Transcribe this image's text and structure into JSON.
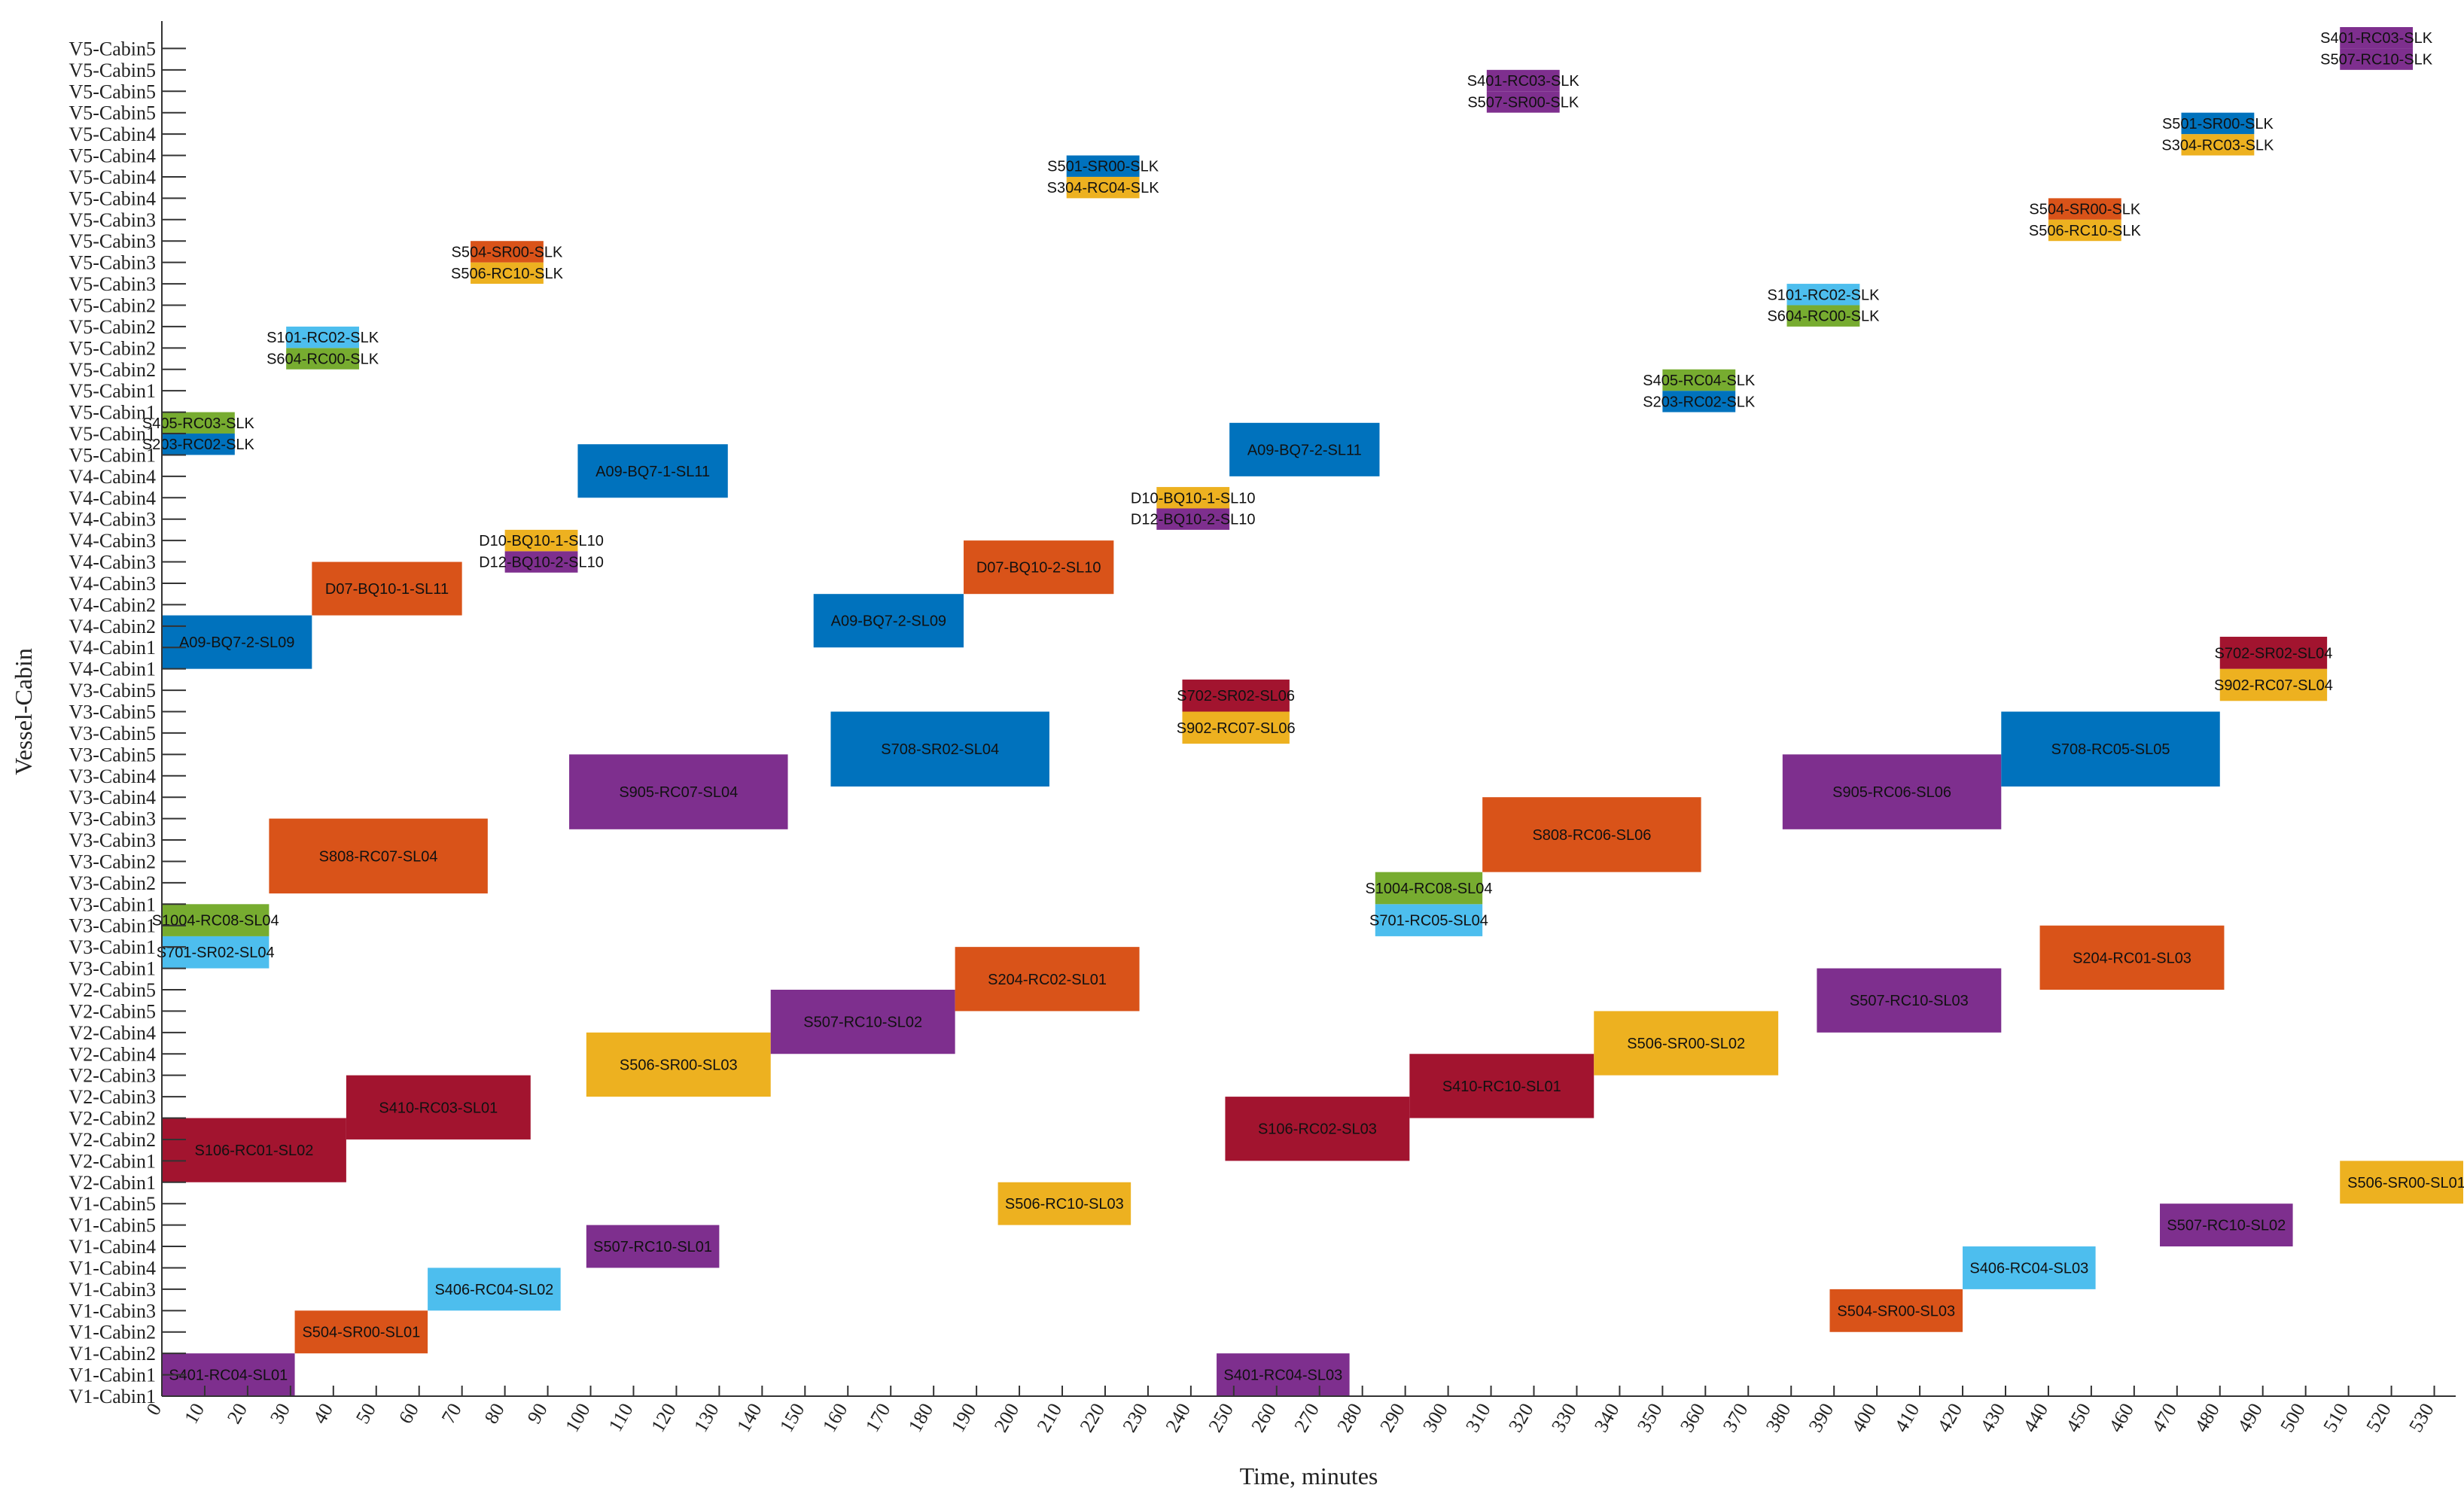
{
  "chart_data": {
    "type": "gantt",
    "xlabel": "Time, minutes",
    "ylabel": "Vessel-Cabin",
    "xlim": [
      0,
      535
    ],
    "x_ticks": [
      0,
      10,
      20,
      30,
      40,
      50,
      60,
      70,
      80,
      90,
      100,
      110,
      120,
      130,
      140,
      150,
      160,
      170,
      180,
      190,
      200,
      210,
      220,
      230,
      240,
      250,
      260,
      270,
      280,
      290,
      300,
      310,
      320,
      330,
      340,
      350,
      360,
      370,
      380,
      390,
      400,
      410,
      420,
      430,
      440,
      450,
      460,
      470,
      480,
      490,
      500,
      510,
      520,
      530
    ],
    "y_ticks": [
      "V1-Cabin1",
      "V1-Cabin1",
      "V1-Cabin2",
      "V1-Cabin2",
      "V1-Cabin3",
      "V1-Cabin3",
      "V1-Cabin4",
      "V1-Cabin4",
      "V1-Cabin5",
      "V1-Cabin5",
      "V2-Cabin1",
      "V2-Cabin1",
      "V2-Cabin2",
      "V2-Cabin2",
      "V2-Cabin3",
      "V2-Cabin3",
      "V2-Cabin4",
      "V2-Cabin4",
      "V2-Cabin5",
      "V2-Cabin5",
      "V3-Cabin1",
      "V3-Cabin1",
      "V3-Cabin1",
      "V3-Cabin1",
      "V3-Cabin2",
      "V3-Cabin2",
      "V3-Cabin3",
      "V3-Cabin3",
      "V3-Cabin4",
      "V3-Cabin4",
      "V3-Cabin5",
      "V3-Cabin5",
      "V3-Cabin5",
      "V3-Cabin5",
      "V4-Cabin1",
      "V4-Cabin1",
      "V4-Cabin2",
      "V4-Cabin2",
      "V4-Cabin3",
      "V4-Cabin3",
      "V4-Cabin3",
      "V4-Cabin3",
      "V4-Cabin4",
      "V4-Cabin4",
      "V5-Cabin1",
      "V5-Cabin1",
      "V5-Cabin1",
      "V5-Cabin1",
      "V5-Cabin2",
      "V5-Cabin2",
      "V5-Cabin2",
      "V5-Cabin2",
      "V5-Cabin3",
      "V5-Cabin3",
      "V5-Cabin3",
      "V5-Cabin3",
      "V5-Cabin4",
      "V5-Cabin4",
      "V5-Cabin4",
      "V5-Cabin4",
      "V5-Cabin5",
      "V5-Cabin5",
      "V5-Cabin5",
      "V5-Cabin5"
    ],
    "ylim": [
      0,
      64
    ],
    "colors": {
      "purple": "#7E2F8E",
      "orange": "#D95319",
      "lightblue": "#4DBEEE",
      "crimson": "#A2142F",
      "yellow": "#EDB120",
      "blue": "#0072BD",
      "green": "#77AC30"
    },
    "bars": [
      {
        "label": "S401-RC04-SL01",
        "start": 0,
        "end": 31,
        "y0": 0,
        "y1": 2,
        "color": "purple"
      },
      {
        "label": "S504-SR00-SL01",
        "start": 31,
        "end": 62,
        "y0": 2,
        "y1": 4,
        "color": "orange"
      },
      {
        "label": "S406-RC04-SL02",
        "start": 62,
        "end": 93,
        "y0": 4,
        "y1": 6,
        "color": "lightblue"
      },
      {
        "label": "S507-RC10-SL01",
        "start": 99,
        "end": 130,
        "y0": 6,
        "y1": 8,
        "color": "purple"
      },
      {
        "label": "S506-RC10-SL03",
        "start": 195,
        "end": 226,
        "y0": 8,
        "y1": 10,
        "color": "yellow"
      },
      {
        "label": "S401-RC04-SL03",
        "start": 246,
        "end": 277,
        "y0": 0,
        "y1": 2,
        "color": "purple"
      },
      {
        "label": "S504-SR00-SL03",
        "start": 389,
        "end": 420,
        "y0": 3,
        "y1": 5,
        "color": "orange"
      },
      {
        "label": "S406-RC04-SL03",
        "start": 420,
        "end": 451,
        "y0": 5,
        "y1": 7,
        "color": "lightblue"
      },
      {
        "label": "S507-RC10-SL02",
        "start": 466,
        "end": 497,
        "y0": 7,
        "y1": 9,
        "color": "purple"
      },
      {
        "label": "S506-SR00-SL01",
        "start": 508,
        "end": 539,
        "y0": 9,
        "y1": 11,
        "color": "yellow"
      },
      {
        "label": "S106-RC01-SL02",
        "start": 0,
        "end": 43,
        "y0": 10,
        "y1": 13,
        "color": "crimson"
      },
      {
        "label": "S410-RC03-SL01",
        "start": 43,
        "end": 86,
        "y0": 12,
        "y1": 15,
        "color": "crimson"
      },
      {
        "label": "S506-SR00-SL03",
        "start": 99,
        "end": 142,
        "y0": 14,
        "y1": 17,
        "color": "yellow"
      },
      {
        "label": "S507-RC10-SL02",
        "start": 142,
        "end": 185,
        "y0": 16,
        "y1": 19,
        "color": "purple"
      },
      {
        "label": "S204-RC02-SL01",
        "start": 185,
        "end": 228,
        "y0": 18,
        "y1": 21,
        "color": "orange"
      },
      {
        "label": "S106-RC02-SL03",
        "start": 248,
        "end": 291,
        "y0": 11,
        "y1": 14,
        "color": "crimson"
      },
      {
        "label": "S410-RC10-SL01",
        "start": 291,
        "end": 334,
        "y0": 13,
        "y1": 16,
        "color": "crimson"
      },
      {
        "label": "S506-SR00-SL02",
        "start": 334,
        "end": 377,
        "y0": 15,
        "y1": 18,
        "color": "yellow"
      },
      {
        "label": "S507-RC10-SL03",
        "start": 386,
        "end": 429,
        "y0": 17,
        "y1": 20,
        "color": "purple"
      },
      {
        "label": "S204-RC01-SL03",
        "start": 438,
        "end": 481,
        "y0": 19,
        "y1": 22,
        "color": "orange"
      },
      {
        "label": "S701-SR02-SL04",
        "start": 0,
        "end": 25,
        "y0": 20,
        "y1": 21.5,
        "color": "lightblue"
      },
      {
        "label": "S1004-RC08-SL04",
        "start": 0,
        "end": 25,
        "y0": 21.5,
        "y1": 23,
        "color": "green"
      },
      {
        "label": "S808-RC07-SL04",
        "start": 25,
        "end": 76,
        "y0": 23.5,
        "y1": 27,
        "color": "orange"
      },
      {
        "label": "S905-RC07-SL04",
        "start": 95,
        "end": 146,
        "y0": 26.5,
        "y1": 30,
        "color": "purple"
      },
      {
        "label": "S708-SR02-SL04",
        "start": 156,
        "end": 207,
        "y0": 28.5,
        "y1": 32,
        "color": "blue"
      },
      {
        "label": "S902-RC07-SL06",
        "start": 238,
        "end": 263,
        "y0": 30.5,
        "y1": 32,
        "color": "yellow"
      },
      {
        "label": "S702-SR02-SL06",
        "start": 238,
        "end": 263,
        "y0": 32,
        "y1": 33.5,
        "color": "crimson"
      },
      {
        "label": "S701-RC05-SL04",
        "start": 283,
        "end": 308,
        "y0": 21.5,
        "y1": 23,
        "color": "lightblue"
      },
      {
        "label": "S1004-RC08-SL04",
        "start": 283,
        "end": 308,
        "y0": 23,
        "y1": 24.5,
        "color": "green"
      },
      {
        "label": "S808-RC06-SL06",
        "start": 308,
        "end": 359,
        "y0": 24.5,
        "y1": 28,
        "color": "orange"
      },
      {
        "label": "S905-RC06-SL06",
        "start": 378,
        "end": 429,
        "y0": 26.5,
        "y1": 30,
        "color": "purple"
      },
      {
        "label": "S708-RC05-SL05",
        "start": 429,
        "end": 480,
        "y0": 28.5,
        "y1": 32,
        "color": "blue"
      },
      {
        "label": "S902-RC07-SL04",
        "start": 480,
        "end": 505,
        "y0": 32.5,
        "y1": 34,
        "color": "yellow"
      },
      {
        "label": "S702-SR02-SL04",
        "start": 480,
        "end": 505,
        "y0": 34,
        "y1": 35.5,
        "color": "crimson"
      },
      {
        "label": "A09-BQ7-2-SL09",
        "start": 0,
        "end": 35,
        "y0": 34,
        "y1": 36.5,
        "color": "blue"
      },
      {
        "label": "D07-BQ10-1-SL11",
        "start": 35,
        "end": 70,
        "y0": 36.5,
        "y1": 39,
        "color": "orange"
      },
      {
        "label": "D12-BQ10-2-SL10",
        "start": 80,
        "end": 97,
        "y0": 38.5,
        "y1": 39.5,
        "color": "purple"
      },
      {
        "label": "D10-BQ10-1-SL10",
        "start": 80,
        "end": 97,
        "y0": 39.5,
        "y1": 40.5,
        "color": "yellow"
      },
      {
        "label": "A09-BQ7-1-SL11",
        "start": 97,
        "end": 132,
        "y0": 42,
        "y1": 44.5,
        "color": "blue"
      },
      {
        "label": "A09-BQ7-2-SL09",
        "start": 152,
        "end": 187,
        "y0": 35,
        "y1": 37.5,
        "color": "blue"
      },
      {
        "label": "D07-BQ10-2-SL10",
        "start": 187,
        "end": 222,
        "y0": 37.5,
        "y1": 40,
        "color": "orange"
      },
      {
        "label": "D12-BQ10-2-SL10",
        "start": 232,
        "end": 249,
        "y0": 40.5,
        "y1": 41.5,
        "color": "purple"
      },
      {
        "label": "D10-BQ10-1-SL10",
        "start": 232,
        "end": 249,
        "y0": 41.5,
        "y1": 42.5,
        "color": "yellow"
      },
      {
        "label": "A09-BQ7-2-SL11",
        "start": 249,
        "end": 284,
        "y0": 43,
        "y1": 45.5,
        "color": "blue"
      },
      {
        "label": "S203-RC02-SLK",
        "start": 0,
        "end": 17,
        "y0": 44,
        "y1": 45,
        "color": "blue"
      },
      {
        "label": "S405-RC03-SLK",
        "start": 0,
        "end": 17,
        "y0": 45,
        "y1": 46,
        "color": "green"
      },
      {
        "label": "S604-RC00-SLK",
        "start": 29,
        "end": 46,
        "y0": 48,
        "y1": 49,
        "color": "green"
      },
      {
        "label": "S101-RC02-SLK",
        "start": 29,
        "end": 46,
        "y0": 49,
        "y1": 50,
        "color": "lightblue"
      },
      {
        "label": "S506-RC10-SLK",
        "start": 72,
        "end": 89,
        "y0": 52,
        "y1": 53,
        "color": "yellow"
      },
      {
        "label": "S504-SR00-SLK",
        "start": 72,
        "end": 89,
        "y0": 53,
        "y1": 54,
        "color": "orange"
      },
      {
        "label": "S304-RC04-SLK",
        "start": 211,
        "end": 228,
        "y0": 56,
        "y1": 57,
        "color": "yellow"
      },
      {
        "label": "S501-SR00-SLK",
        "start": 211,
        "end": 228,
        "y0": 57,
        "y1": 58,
        "color": "blue"
      },
      {
        "label": "S507-SR00-SLK",
        "start": 309,
        "end": 326,
        "y0": 60,
        "y1": 61,
        "color": "purple"
      },
      {
        "label": "S401-RC03-SLK",
        "start": 309,
        "end": 326,
        "y0": 61,
        "y1": 62,
        "color": "purple"
      },
      {
        "label": "S203-RC02-SLK",
        "start": 350,
        "end": 367,
        "y0": 46,
        "y1": 47,
        "color": "blue"
      },
      {
        "label": "S405-RC04-SLK",
        "start": 350,
        "end": 367,
        "y0": 47,
        "y1": 48,
        "color": "green"
      },
      {
        "label": "S604-RC00-SLK",
        "start": 379,
        "end": 396,
        "y0": 50,
        "y1": 51,
        "color": "green"
      },
      {
        "label": "S101-RC02-SLK",
        "start": 379,
        "end": 396,
        "y0": 51,
        "y1": 52,
        "color": "lightblue"
      },
      {
        "label": "S506-RC10-SLK",
        "start": 440,
        "end": 457,
        "y0": 54,
        "y1": 55,
        "color": "yellow"
      },
      {
        "label": "S504-SR00-SLK",
        "start": 440,
        "end": 457,
        "y0": 55,
        "y1": 56,
        "color": "orange"
      },
      {
        "label": "S304-RC03-SLK",
        "start": 471,
        "end": 488,
        "y0": 58,
        "y1": 59,
        "color": "yellow"
      },
      {
        "label": "S501-SR00-SLK",
        "start": 471,
        "end": 488,
        "y0": 59,
        "y1": 60,
        "color": "blue"
      },
      {
        "label": "S507-RC10-SLK",
        "start": 508,
        "end": 525,
        "y0": 62,
        "y1": 63,
        "color": "purple"
      },
      {
        "label": "S401-RC03-SLK",
        "start": 508,
        "end": 525,
        "y0": 63,
        "y1": 64,
        "color": "purple"
      }
    ]
  }
}
